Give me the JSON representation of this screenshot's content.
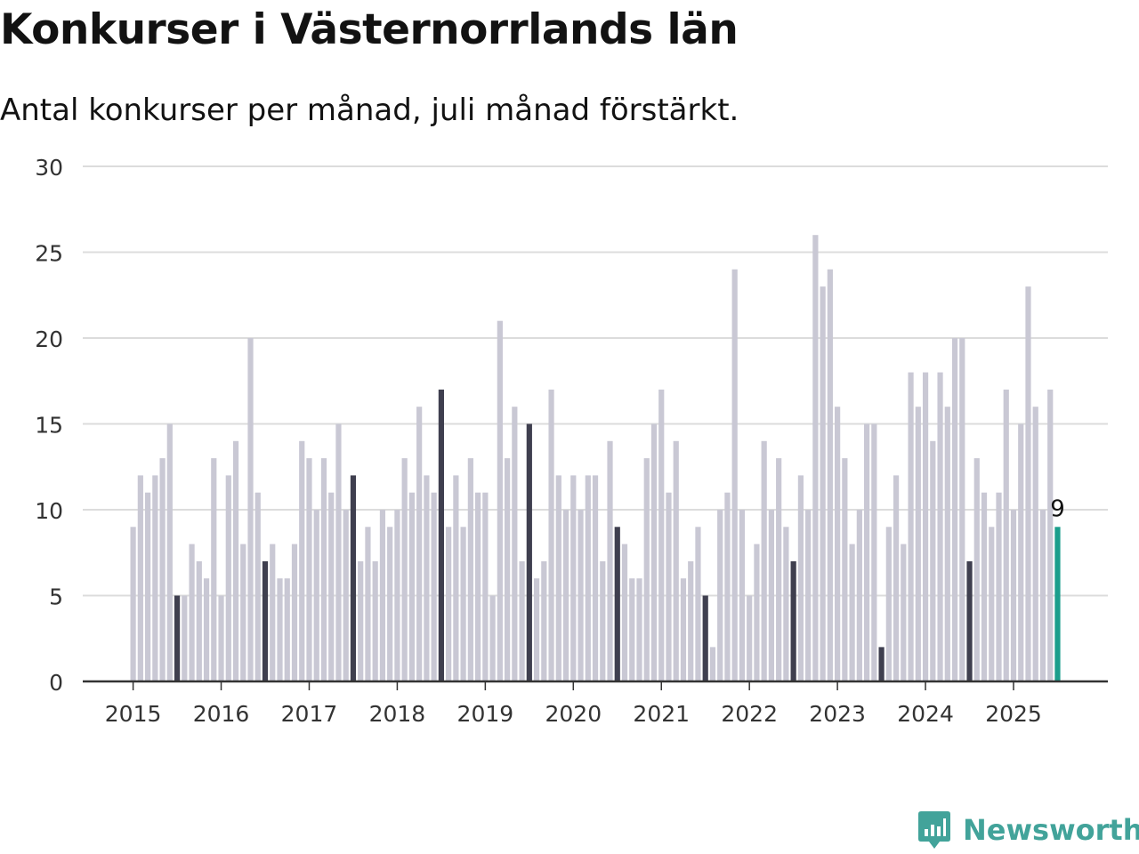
{
  "title": "Konkurser i Västernorrlands län",
  "subtitle": "Antal konkurser per månad, juli månad förstärkt.",
  "brand": {
    "name": "Newsworthy",
    "logo_icon": "newsworthy-bar-chart-speech-bubble-icon",
    "color": "#42a39a"
  },
  "colors": {
    "bar": "#c9c8d4",
    "highlight": "#3f3f4f",
    "latest": "#1b9e8c",
    "grid": "#dcdcdc",
    "axis": "#333333"
  },
  "chart_data": {
    "type": "bar",
    "start": "2015-01",
    "frequency": "monthly",
    "highlight_month": "July",
    "ylim": [
      0,
      30
    ],
    "yticks": [
      0,
      5,
      10,
      15,
      20,
      25,
      30
    ],
    "xticks": [
      "2015",
      "2016",
      "2017",
      "2018",
      "2019",
      "2020",
      "2021",
      "2022",
      "2023",
      "2024",
      "2025"
    ],
    "grid": true,
    "legend": "none",
    "last_value_label": "9",
    "values": [
      9,
      12,
      11,
      12,
      13,
      15,
      5,
      5,
      8,
      7,
      6,
      13,
      5,
      12,
      14,
      8,
      20,
      11,
      7,
      8,
      6,
      6,
      8,
      14,
      13,
      10,
      13,
      11,
      15,
      10,
      12,
      7,
      9,
      7,
      10,
      9,
      10,
      13,
      11,
      16,
      12,
      11,
      17,
      9,
      12,
      9,
      13,
      11,
      11,
      5,
      21,
      13,
      16,
      7,
      15,
      6,
      7,
      17,
      12,
      10,
      12,
      10,
      12,
      12,
      7,
      14,
      9,
      8,
      6,
      6,
      13,
      15,
      17,
      11,
      14,
      6,
      7,
      9,
      5,
      2,
      10,
      11,
      24,
      10,
      5,
      8,
      14,
      10,
      13,
      9,
      7,
      12,
      10,
      26,
      23,
      24,
      16,
      13,
      8,
      10,
      15,
      15,
      2,
      9,
      12,
      8,
      18,
      16,
      18,
      14,
      18,
      16,
      20,
      20,
      7,
      13,
      11,
      9,
      11,
      17,
      10,
      15,
      23,
      16,
      10,
      17,
      9
    ]
  }
}
